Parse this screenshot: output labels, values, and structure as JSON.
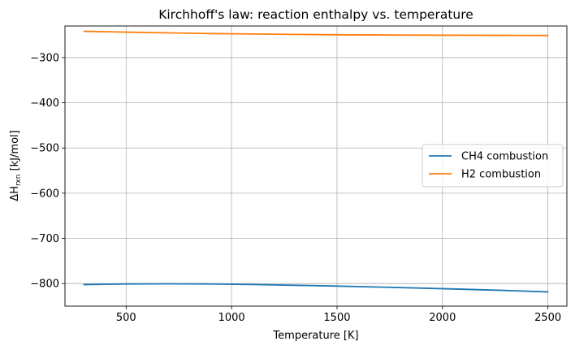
{
  "chart_data": {
    "type": "line",
    "title": "Kirchhoff's law: reaction enthalpy vs. temperature",
    "xlabel": "Temperature [K]",
    "ylabel": {
      "prefix": "ΔH",
      "subscript": "rxn",
      "suffix": " [kJ/mol]"
    },
    "xlim": [
      210,
      2590
    ],
    "ylim": [
      -850,
      -230
    ],
    "xticks": [
      500,
      1000,
      1500,
      2000,
      2500
    ],
    "yticks": [
      -800,
      -700,
      -600,
      -500,
      -400,
      -300
    ],
    "xtick_labels": [
      "500",
      "1000",
      "1500",
      "2000",
      "2500"
    ],
    "ytick_labels": [
      "−800",
      "−700",
      "−600",
      "−500",
      "−400",
      "−300"
    ],
    "grid": true,
    "legend_position": "center-right",
    "series": [
      {
        "name": "CH4 combustion",
        "color": "#1f77b4",
        "x": [
          300,
          500,
          700,
          900,
          1100,
          1300,
          1500,
          1700,
          1900,
          2100,
          2300,
          2500
        ],
        "y": [
          -802.3,
          -800.9,
          -800.6,
          -801.0,
          -802.1,
          -803.8,
          -805.6,
          -807.8,
          -810.1,
          -812.6,
          -815.3,
          -818.4
        ]
      },
      {
        "name": "H2 combustion",
        "color": "#ff7f0e",
        "x": [
          300,
          500,
          700,
          900,
          1100,
          1300,
          1500,
          1700,
          1900,
          2100,
          2300,
          2500
        ],
        "y": [
          -241.8,
          -243.6,
          -245.3,
          -246.7,
          -247.8,
          -248.7,
          -249.4,
          -249.9,
          -250.3,
          -250.6,
          -250.8,
          -251.0
        ]
      }
    ]
  }
}
